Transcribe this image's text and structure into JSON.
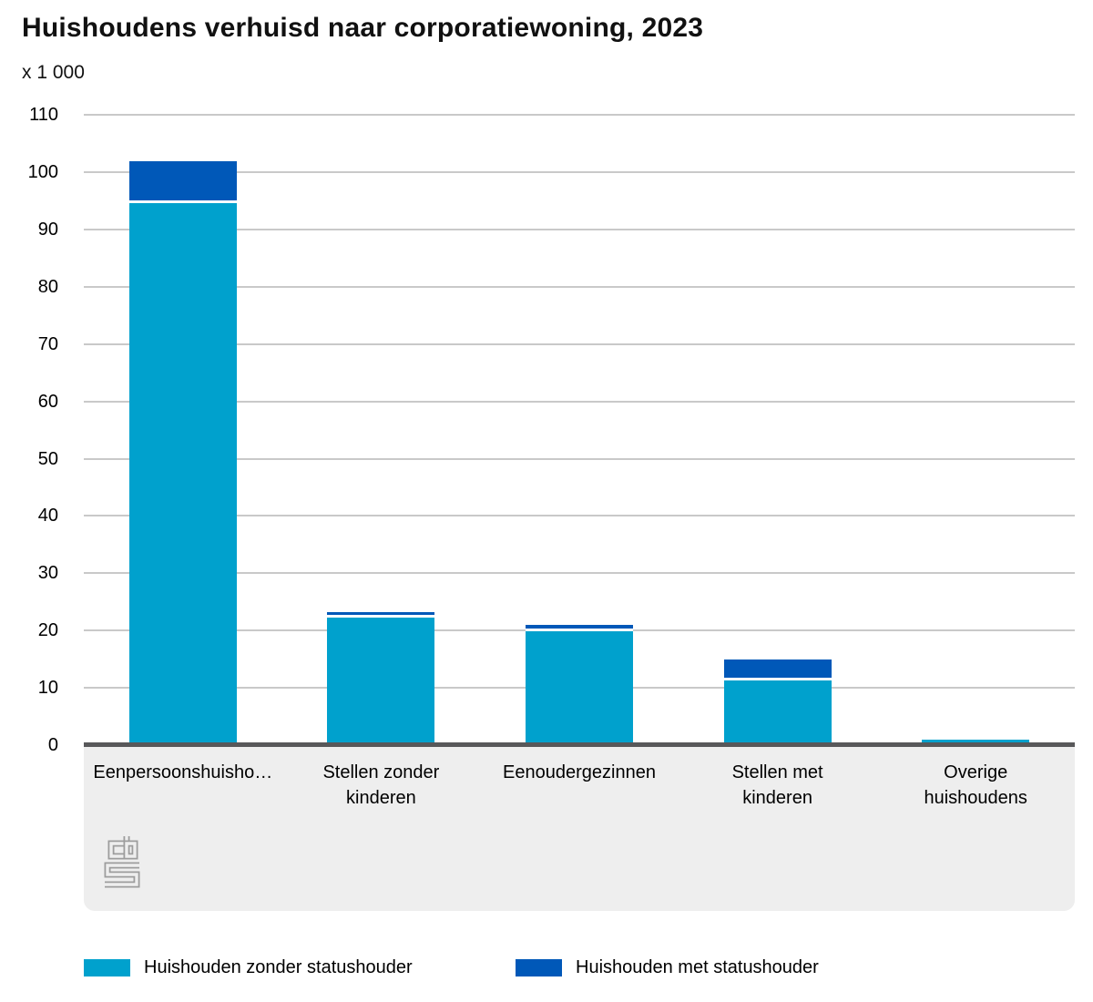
{
  "chart_data": {
    "type": "bar",
    "stacked": true,
    "title": "Huishoudens verhuisd naar corporatiewoning, 2023",
    "unit_label": "x 1 000",
    "categories": [
      "Eenpersoonshuisho…",
      "Stellen zonder kinderen",
      "Eenoudergezinnen",
      "Stellen met kinderen",
      "Overige huishoudens"
    ],
    "category_label_lines": [
      [
        "Eenpersoonshuisho…"
      ],
      [
        "Stellen zonder",
        "kinderen"
      ],
      [
        "Eenoudergezinnen"
      ],
      [
        "Stellen met",
        "kinderen"
      ],
      [
        "Overige",
        "huishoudens"
      ]
    ],
    "series": [
      {
        "name": "Huishouden zonder statushouder",
        "color": "#00a1cd",
        "values": [
          94.2,
          22.0,
          19.5,
          11.0,
          0.7
        ]
      },
      {
        "name": "Huishouden met statushouder",
        "color": "#0058b8",
        "values": [
          7.2,
          0.7,
          1.0,
          3.5,
          0.1
        ]
      }
    ],
    "ylim": [
      0,
      110
    ],
    "ytick_step": 10,
    "yticks": [
      0,
      10,
      20,
      30,
      40,
      50,
      60,
      70,
      80,
      90,
      100,
      110
    ],
    "grid": true,
    "legend_position": "bottom"
  },
  "branding": {
    "logo_name": "cbs-logo"
  },
  "colors": {
    "series_zonder": "#00a1cd",
    "series_met": "#0058b8",
    "gridline": "#c9c9c9",
    "axis": "#58585a",
    "footer_bg": "#eeeeee",
    "logo": "#9d9d9d",
    "text": "#000000"
  }
}
